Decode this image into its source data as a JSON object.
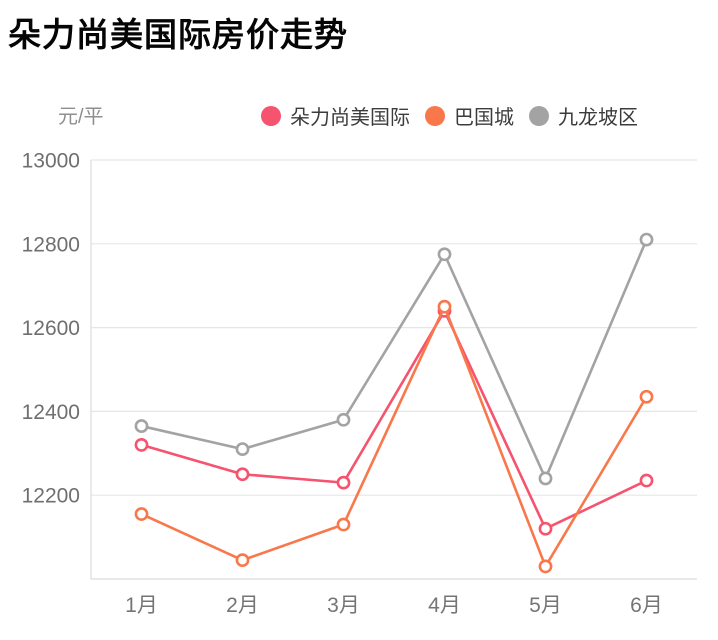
{
  "page": {
    "title": "朵力尚美国际房价走势"
  },
  "chart": {
    "unit_label": "元/平",
    "colors": {
      "primary_series": "#f5536e",
      "secondary_series": "#f9784b",
      "tertiary_series": "#a3a3a3",
      "gridline": "#e6e6e6",
      "axis_line": "#dcdcdc",
      "tick_text": "#6f6f6f",
      "x_tick_text": "#757575"
    }
  },
  "chart_data": {
    "type": "line",
    "title": "朵力尚美国际房价走势",
    "xlabel": "",
    "ylabel": "元/平",
    "categories": [
      "1月",
      "2月",
      "3月",
      "4月",
      "5月",
      "6月"
    ],
    "series": [
      {
        "name": "朵力尚美国际",
        "color": "#f5536e",
        "values": [
          12320,
          12250,
          12230,
          12640,
          12120,
          12235
        ]
      },
      {
        "name": "巴国城",
        "color": "#f9784b",
        "values": [
          12155,
          12045,
          12130,
          12650,
          12030,
          12435
        ]
      },
      {
        "name": "九龙坡区",
        "color": "#a3a3a3",
        "values": [
          12365,
          12310,
          12380,
          12775,
          12240,
          12810
        ]
      }
    ],
    "ylim": [
      12000,
      13000
    ],
    "yticks": [
      12200,
      12400,
      12600,
      12800,
      13000
    ],
    "grid": true,
    "legend_position": "top-right",
    "marker": "open-circle"
  }
}
